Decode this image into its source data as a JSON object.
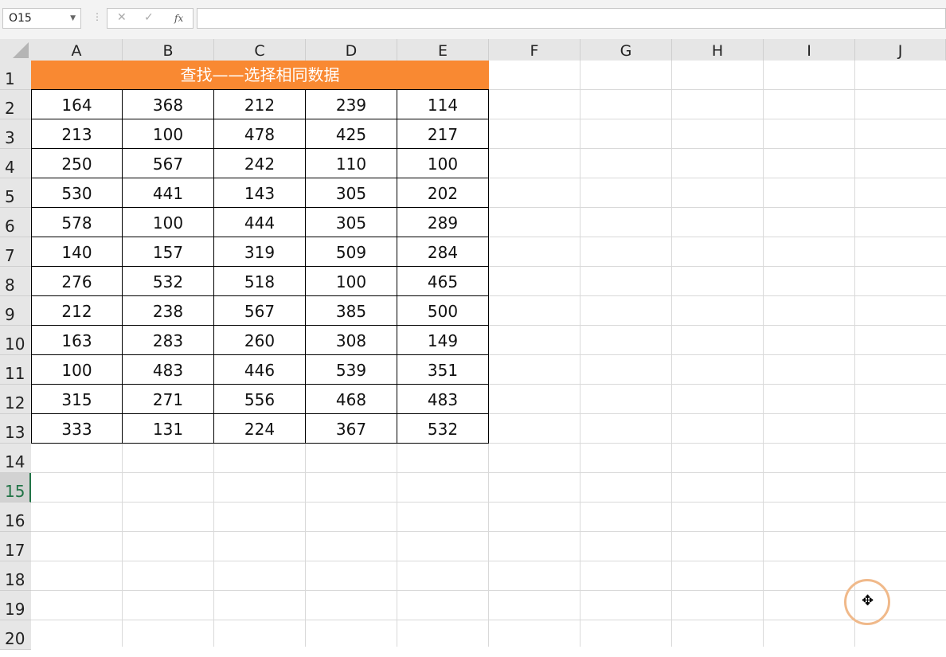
{
  "name_box": "O15",
  "formula_bar": {
    "cancel_icon": "✕",
    "enter_icon": "✓",
    "fx_label": "fx",
    "value": ""
  },
  "columns": [
    "A",
    "B",
    "C",
    "D",
    "E",
    "F",
    "G",
    "H",
    "I",
    "J"
  ],
  "rows": [
    "1",
    "2",
    "3",
    "4",
    "5",
    "6",
    "7",
    "8",
    "9",
    "10",
    "11",
    "12",
    "13",
    "14",
    "15",
    "16",
    "17",
    "18",
    "19",
    "20"
  ],
  "selected_row": "15",
  "title": "查找——选择相同数据",
  "title_color": "#f98932",
  "table": [
    [
      "164",
      "368",
      "212",
      "239",
      "114"
    ],
    [
      "213",
      "100",
      "478",
      "425",
      "217"
    ],
    [
      "250",
      "567",
      "242",
      "110",
      "100"
    ],
    [
      "530",
      "441",
      "143",
      "305",
      "202"
    ],
    [
      "578",
      "100",
      "444",
      "305",
      "289"
    ],
    [
      "140",
      "157",
      "319",
      "509",
      "284"
    ],
    [
      "276",
      "532",
      "518",
      "100",
      "465"
    ],
    [
      "212",
      "238",
      "567",
      "385",
      "500"
    ],
    [
      "163",
      "283",
      "260",
      "308",
      "149"
    ],
    [
      "100",
      "483",
      "446",
      "539",
      "351"
    ],
    [
      "315",
      "271",
      "556",
      "468",
      "483"
    ],
    [
      "333",
      "131",
      "224",
      "367",
      "532"
    ]
  ],
  "cursor_icon": "move-cursor"
}
